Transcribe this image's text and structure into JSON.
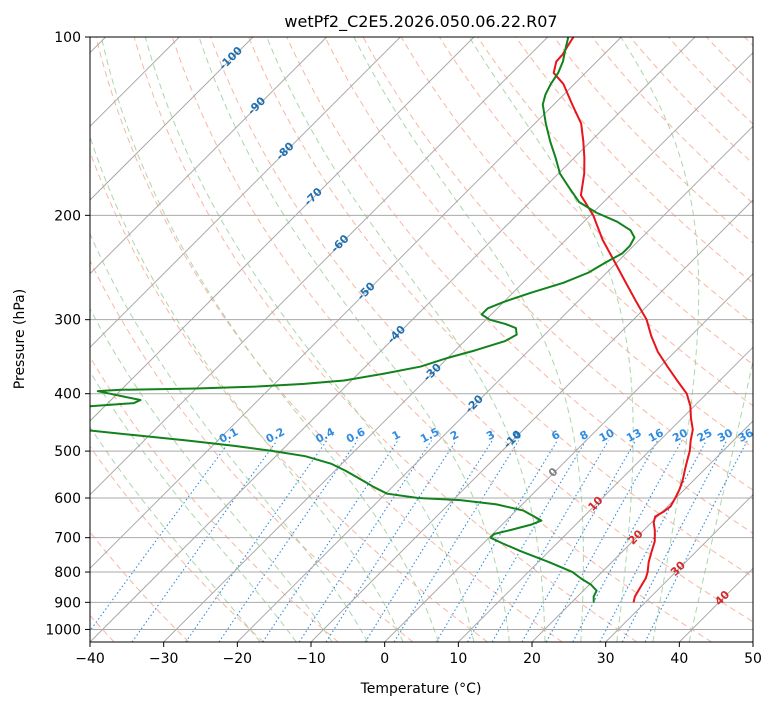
{
  "chart_data": {
    "type": "line",
    "diagram": "skew-t log-p",
    "title": "wetPf2_C2E5.2026.050.06.22.R07",
    "xlabel": "Temperature (°C)",
    "ylabel": "Pressure (hPa)",
    "xlim": [
      -40,
      50
    ],
    "ylim": [
      1050,
      100
    ],
    "y_scale": "log",
    "grid": true,
    "x_ticks": [
      "−40",
      "−30",
      "−20",
      "−10",
      "0",
      "10",
      "20",
      "30",
      "40",
      "50"
    ],
    "y_ticks": [
      {
        "p": 100,
        "label": "100"
      },
      {
        "p": 200,
        "label": "200"
      },
      {
        "p": 300,
        "label": "300"
      },
      {
        "p": 400,
        "label": "400"
      },
      {
        "p": 500,
        "label": "500"
      },
      {
        "p": 600,
        "label": "600"
      },
      {
        "p": 700,
        "label": "700"
      },
      {
        "p": 800,
        "label": "800"
      },
      {
        "p": 900,
        "label": "900"
      },
      {
        "p": 1000,
        "label": "1000"
      }
    ],
    "colors": {
      "temperature": "#e8141a",
      "dewpoint": "#11821c",
      "isotherm": "#a9a9a9",
      "dry_adiabat": "#f5a58c",
      "moist_adiabat": "#9ccf9c",
      "mixing_ratio": "#2f8ce0",
      "neg_label": "#1f6fb0",
      "pos_label": "#d62828",
      "zero_label": "#808080",
      "mixing_label": "#2f8ce0"
    },
    "isotherm_labels_negative": [
      {
        "label": "-100",
        "T": -100,
        "p": 108
      },
      {
        "label": "-90",
        "T": -90,
        "p": 130
      },
      {
        "label": "-80",
        "T": -80,
        "p": 155
      },
      {
        "label": "-70",
        "T": -70,
        "p": 185
      },
      {
        "label": "-60",
        "T": -60,
        "p": 222
      },
      {
        "label": "-50",
        "T": -50,
        "p": 267
      },
      {
        "label": "-40",
        "T": -40,
        "p": 316
      },
      {
        "label": "-30",
        "T": -30,
        "p": 366
      },
      {
        "label": "-20",
        "T": -20,
        "p": 414
      },
      {
        "label": "-10",
        "T": -10,
        "p": 475
      }
    ],
    "isotherm_label_zero": {
      "label": "0",
      "T": 0,
      "p": 540
    },
    "isotherm_labels_positive": [
      {
        "label": "10",
        "T": 10,
        "p": 610
      },
      {
        "label": "20",
        "T": 20,
        "p": 695
      },
      {
        "label": "30",
        "T": 30,
        "p": 785
      },
      {
        "label": "40",
        "T": 40,
        "p": 880
      }
    ],
    "mixing_ratio_labels": [
      {
        "label": "0.1",
        "w": 0.1
      },
      {
        "label": "0.2",
        "w": 0.2
      },
      {
        "label": "0.4",
        "w": 0.4
      },
      {
        "label": "0.6",
        "w": 0.6
      },
      {
        "label": "1",
        "w": 1
      },
      {
        "label": "1.5",
        "w": 1.5
      },
      {
        "label": "2",
        "w": 2
      },
      {
        "label": "3",
        "w": 3
      },
      {
        "label": "4",
        "w": 4
      },
      {
        "label": "6",
        "w": 6
      },
      {
        "label": "8",
        "w": 8
      },
      {
        "label": "10",
        "w": 10
      },
      {
        "label": "13",
        "w": 13
      },
      {
        "label": "16",
        "w": 16
      },
      {
        "label": "20",
        "w": 20
      },
      {
        "label": "25",
        "w": 25
      },
      {
        "label": "30",
        "w": 30
      },
      {
        "label": "36",
        "w": 36
      }
    ],
    "mixing_ratio_label_pressure": 480,
    "series": [
      {
        "role": "temperature",
        "points": [
          [
            900,
            28.4
          ],
          [
            880,
            27.8
          ],
          [
            850,
            27.3
          ],
          [
            820,
            26.8
          ],
          [
            800,
            26.2
          ],
          [
            770,
            25.0
          ],
          [
            740,
            24.0
          ],
          [
            710,
            23.0
          ],
          [
            680,
            21.5
          ],
          [
            660,
            20.3
          ],
          [
            645,
            19.7
          ],
          [
            632,
            20.2
          ],
          [
            620,
            20.4
          ],
          [
            600,
            19.9
          ],
          [
            580,
            19.3
          ],
          [
            560,
            18.5
          ],
          [
            540,
            17.5
          ],
          [
            520,
            16.5
          ],
          [
            500,
            15.5
          ],
          [
            480,
            14.2
          ],
          [
            460,
            13.0
          ],
          [
            440,
            11.2
          ],
          [
            420,
            9.5
          ],
          [
            400,
            7.3
          ],
          [
            380,
            4.2
          ],
          [
            360,
            1.0
          ],
          [
            340,
            -2.3
          ],
          [
            320,
            -5.3
          ],
          [
            300,
            -8.2
          ],
          [
            280,
            -12.0
          ],
          [
            260,
            -16.0
          ],
          [
            240,
            -20.3
          ],
          [
            220,
            -25.0
          ],
          [
            200,
            -29.6
          ],
          [
            185,
            -34.0
          ],
          [
            170,
            -36.5
          ],
          [
            160,
            -38.6
          ],
          [
            150,
            -41.0
          ],
          [
            140,
            -43.7
          ],
          [
            130,
            -47.5
          ],
          [
            120,
            -51.5
          ],
          [
            115,
            -54.3
          ],
          [
            110,
            -55.5
          ],
          [
            107,
            -55.6
          ],
          [
            104,
            -56.0
          ],
          [
            100,
            -56.5
          ]
        ]
      },
      {
        "role": "dewpoint",
        "points": [
          [
            900,
            23.0
          ],
          [
            880,
            22.2
          ],
          [
            860,
            21.8
          ],
          [
            840,
            20.2
          ],
          [
            820,
            18.0
          ],
          [
            800,
            16.0
          ],
          [
            770,
            11.5
          ],
          [
            740,
            6.5
          ],
          [
            715,
            2.5
          ],
          [
            700,
            0.2
          ],
          [
            690,
            0.2
          ],
          [
            680,
            1.8
          ],
          [
            665,
            4.0
          ],
          [
            655,
            4.8
          ],
          [
            645,
            3.3
          ],
          [
            630,
            1.0
          ],
          [
            615,
            -3.5
          ],
          [
            605,
            -9.0
          ],
          [
            600,
            -15.0
          ],
          [
            590,
            -19.8
          ],
          [
            575,
            -22.5
          ],
          [
            560,
            -25.0
          ],
          [
            540,
            -28.5
          ],
          [
            525,
            -31.5
          ],
          [
            510,
            -36.0
          ],
          [
            500,
            -41.0
          ],
          [
            490,
            -47.0
          ],
          [
            480,
            -54.0
          ],
          [
            470,
            -62.0
          ],
          [
            460,
            -70.0
          ],
          [
            455,
            -78.0
          ],
          [
            450,
            -86.0
          ],
          [
            445,
            -93.0
          ],
          [
            440,
            -99.0
          ],
          [
            436,
            -99.0
          ],
          [
            433,
            -95.0
          ],
          [
            430,
            -90.0
          ],
          [
            428,
            -85.0
          ],
          [
            425,
            -79.0
          ],
          [
            420,
            -72.0
          ],
          [
            415,
            -66.5
          ],
          [
            410,
            -66.0
          ],
          [
            405,
            -68.5
          ],
          [
            400,
            -71.0
          ],
          [
            396,
            -73.0
          ],
          [
            394,
            -70.0
          ],
          [
            392,
            -60.0
          ],
          [
            389,
            -52.0
          ],
          [
            385,
            -46.0
          ],
          [
            380,
            -41.0
          ],
          [
            370,
            -36.5
          ],
          [
            360,
            -32.5
          ],
          [
            348,
            -30.0
          ],
          [
            338,
            -27.3
          ],
          [
            326,
            -24.5
          ],
          [
            318,
            -23.8
          ],
          [
            310,
            -24.8
          ],
          [
            305,
            -26.8
          ],
          [
            300,
            -29.5
          ],
          [
            294,
            -31.3
          ],
          [
            287,
            -31.3
          ],
          [
            280,
            -30.0
          ],
          [
            270,
            -27.5
          ],
          [
            260,
            -24.5
          ],
          [
            250,
            -22.5
          ],
          [
            240,
            -21.5
          ],
          [
            232,
            -20.5
          ],
          [
            225,
            -20.5
          ],
          [
            218,
            -21.0
          ],
          [
            212,
            -22.5
          ],
          [
            205,
            -25.5
          ],
          [
            198,
            -29.5
          ],
          [
            190,
            -33.3
          ],
          [
            180,
            -36.5
          ],
          [
            170,
            -39.8
          ],
          [
            160,
            -42.5
          ],
          [
            150,
            -45.5
          ],
          [
            140,
            -48.5
          ],
          [
            130,
            -51.5
          ],
          [
            125,
            -52.5
          ],
          [
            120,
            -53.2
          ],
          [
            115,
            -53.7
          ],
          [
            110,
            -54.6
          ],
          [
            105,
            -55.9
          ],
          [
            100,
            -57.2
          ]
        ]
      }
    ]
  }
}
